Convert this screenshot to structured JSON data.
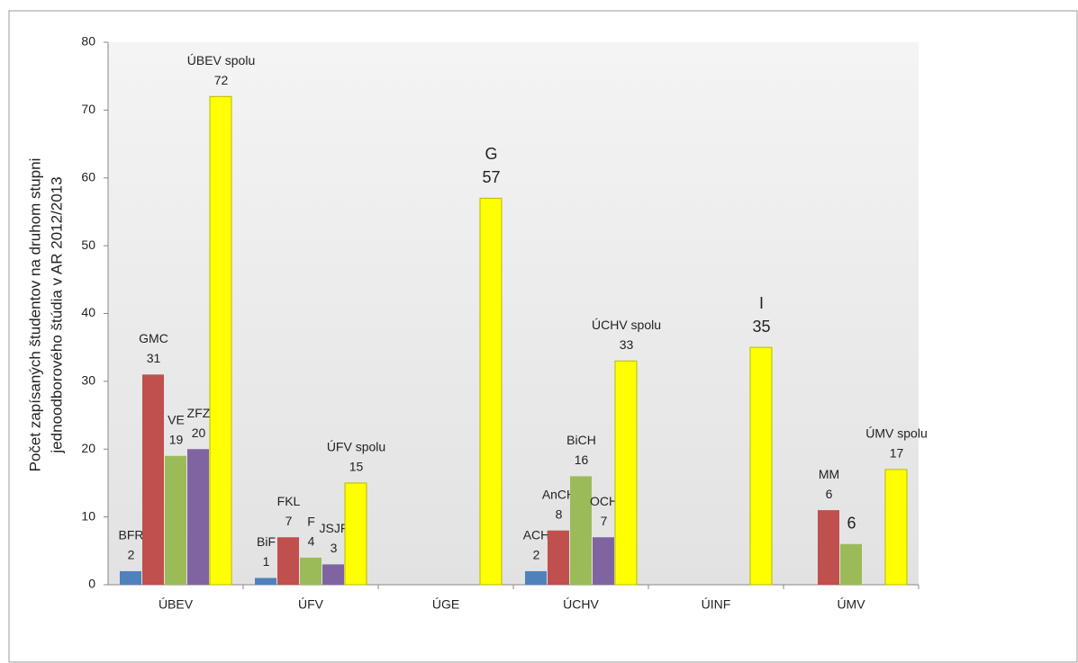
{
  "chart_data": {
    "type": "bar",
    "ylabel": [
      "Počet zapísaných študentov na druhom stupni",
      "jednoodborového štúdia v AR 2012/2013"
    ],
    "categories": [
      "ÚBEV",
      "ÚFV",
      "ÚGE",
      "ÚCHV",
      "ÚINF",
      "ÚMV"
    ],
    "series": [
      {
        "color": "#4f81bd",
        "values": [
          2,
          1,
          null,
          2,
          null,
          null
        ],
        "point_names": [
          "BFR",
          "BiF",
          null,
          "ACH",
          null,
          null
        ]
      },
      {
        "color": "#c0504d",
        "values": [
          31,
          7,
          null,
          8,
          null,
          11
        ],
        "point_names": [
          "GMC",
          "FKL",
          null,
          "AnCH",
          null,
          null
        ]
      },
      {
        "color": "#9bbb59",
        "values": [
          19,
          4,
          null,
          16,
          null,
          6
        ],
        "point_names": [
          "VE",
          "F",
          null,
          "BiCH",
          null,
          null
        ]
      },
      {
        "color": "#8064a2",
        "values": [
          20,
          3,
          null,
          7,
          null,
          null
        ],
        "point_names": [
          "ZFZ",
          "JSJF",
          null,
          "OCH",
          null,
          null
        ]
      },
      {
        "color": "#ffff00",
        "values": [
          72,
          15,
          57,
          33,
          35,
          17
        ],
        "point_names": [
          "ÚBEV spolu",
          "ÚFV spolu",
          "G",
          "ÚCHV spolu",
          "I",
          "ÚMV spolu"
        ]
      }
    ],
    "annotations": [
      {
        "text": "MM",
        "value": 6
      }
    ],
    "ylim": [
      0,
      80
    ],
    "yticks": [
      0,
      10,
      20,
      30,
      40,
      50,
      60,
      70,
      80
    ],
    "grid": false
  }
}
